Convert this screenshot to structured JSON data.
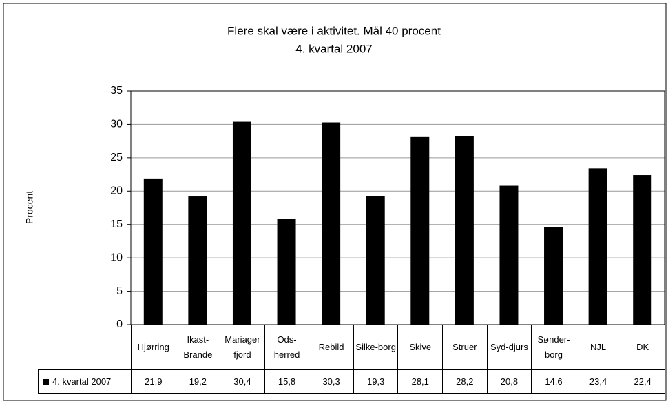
{
  "chart_data": {
    "type": "bar",
    "title": "Flere skal være i aktivitet. Mål 40 procent",
    "subtitle": "4. kvartal 2007",
    "y_label": "Procent",
    "categories": [
      "Hjørring",
      "Ikast-Brande",
      "Mariager fjord",
      "Ods-herred",
      "Rebild",
      "Silke-borg",
      "Skive",
      "Struer",
      "Syd-djurs",
      "Sønder-borg",
      "NJL",
      "DK"
    ],
    "series": [
      {
        "name": "4. kvartal 2007",
        "color": "#000000",
        "values": [
          21.9,
          19.2,
          30.4,
          15.8,
          30.3,
          19.3,
          28.1,
          28.2,
          20.8,
          14.6,
          23.4,
          22.4
        ],
        "value_labels": [
          "21,9",
          "19,2",
          "30,4",
          "15,8",
          "30,3",
          "19,3",
          "28,1",
          "28,2",
          "20,8",
          "14,6",
          "23,4",
          "22,4"
        ]
      }
    ],
    "ylim": [
      0,
      35
    ],
    "yticks": [
      0,
      5,
      10,
      15,
      20,
      25,
      30,
      35
    ],
    "grid": true
  }
}
